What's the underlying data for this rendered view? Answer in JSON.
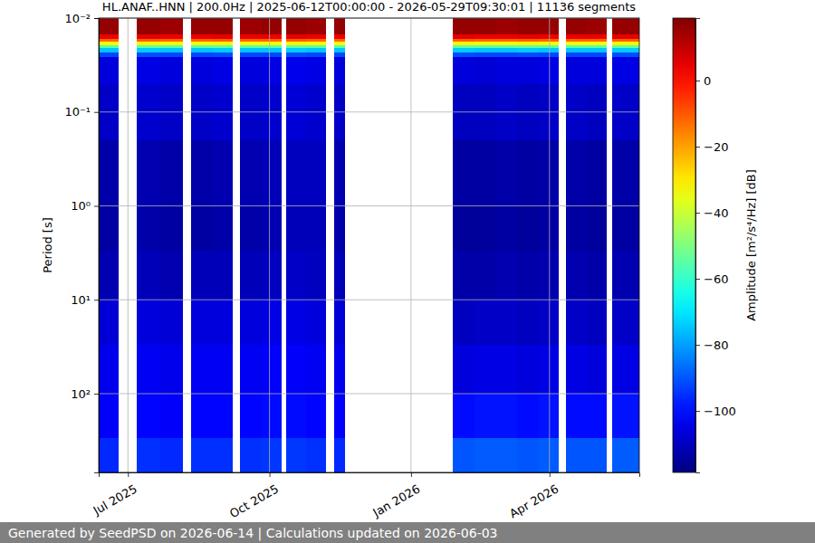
{
  "chart_data": {
    "type": "heatmap",
    "title": "HL.ANAF..HNN | 200.0Hz | 2025-06-12T00:00:00 - 2026-05-29T09:30:01 | 11136 segments",
    "ylabel": "Period [s]",
    "footer": "Generated by SeedPSD on 2026-06-14 | Calculations updated on 2026-06-03",
    "log": "y",
    "grid": true,
    "xlim": [
      "2025-06-12T00:00:00",
      "2026-05-29T09:30:01"
    ],
    "xticks": [
      {
        "value": "2025-07-01",
        "label": "Jul 2025"
      },
      {
        "value": "2025-10-01",
        "label": "Oct 2025"
      },
      {
        "value": "2026-01-01",
        "label": "Jan 2026"
      },
      {
        "value": "2026-04-01",
        "label": "Apr 2026"
      }
    ],
    "ylim": [
      0.01,
      690
    ],
    "yticks": [
      {
        "value": 0.01,
        "label": "10⁻²"
      },
      {
        "value": 0.1,
        "label": "10⁻¹"
      },
      {
        "value": 1,
        "label": "10⁰"
      },
      {
        "value": 10,
        "label": "10¹"
      },
      {
        "value": 100,
        "label": "10²"
      }
    ],
    "x": [
      "2025-06-12",
      "2025-07-07",
      "2025-07-22",
      "2025-08-11",
      "2025-08-25",
      "2025-09-12",
      "2025-09-26",
      "2025-10-12",
      "2025-10-25",
      "2025-11-12",
      "2026-01-28",
      "2026-02-11",
      "2026-02-25",
      "2026-03-11",
      "2026-03-25",
      "2026-04-12",
      "2026-04-25",
      "2026-05-12"
    ],
    "x_end": [
      "2025-06-25",
      "2025-07-22",
      "2025-08-06",
      "2025-08-25",
      "2025-09-07",
      "2025-09-26",
      "2025-10-09",
      "2025-10-25",
      "2025-11-07",
      "2025-11-19",
      "2026-02-11",
      "2026-02-25",
      "2026-03-11",
      "2026-03-25",
      "2026-04-07",
      "2026-04-25",
      "2026-05-08",
      "2026-05-29T09:30:01"
    ],
    "y_edges": [
      0.01,
      0.015,
      0.0165,
      0.018,
      0.0195,
      0.021,
      0.023,
      0.026,
      0.05,
      0.2,
      1,
      3,
      10,
      30,
      100,
      300,
      690
    ],
    "values": [
      [
        16,
        16,
        15,
        16,
        16,
        15,
        16,
        16,
        15,
        16,
        16,
        16,
        15,
        16,
        16,
        16,
        15,
        16
      ],
      [
        4,
        5,
        4,
        4,
        5,
        4,
        4,
        5,
        4,
        4,
        5,
        4,
        4,
        5,
        4,
        4,
        4,
        5
      ],
      [
        -12,
        -11,
        -12,
        -12,
        -11,
        -12,
        -12,
        -11,
        -12,
        -12,
        -11,
        -12,
        -12,
        -11,
        -12,
        -12,
        -12,
        -11
      ],
      [
        -32,
        -31,
        -32,
        -32,
        -31,
        -32,
        -32,
        -31,
        -32,
        -32,
        -31,
        -32,
        -32,
        -31,
        -32,
        -32,
        -32,
        -31
      ],
      [
        -55,
        -54,
        -55,
        -55,
        -54,
        -55,
        -55,
        -54,
        -55,
        -55,
        -54,
        -55,
        -55,
        -54,
        -55,
        -55,
        -55,
        -54
      ],
      [
        -75,
        -74,
        -75,
        -75,
        -74,
        -75,
        -75,
        -74,
        -75,
        -75,
        -74,
        -75,
        -75,
        -74,
        -75,
        -75,
        -75,
        -74
      ],
      [
        -92,
        -91,
        -92,
        -92,
        -91,
        -92,
        -92,
        -91,
        -92,
        -92,
        -91,
        -92,
        -92,
        -91,
        -92,
        -92,
        -92,
        -91
      ],
      [
        -106,
        -105,
        -106,
        -106,
        -105,
        -106,
        -105,
        -104,
        -105,
        -106,
        -106,
        -107,
        -106,
        -106,
        -105,
        -106,
        -106,
        -105
      ],
      [
        -109,
        -108,
        -109,
        -109,
        -108,
        -109,
        -108,
        -107,
        -108,
        -109,
        -110,
        -110,
        -109,
        -110,
        -109,
        -109,
        -110,
        -109
      ],
      [
        -113,
        -112,
        -113,
        -113,
        -112,
        -112,
        -111,
        -110,
        -110,
        -112,
        -114,
        -114,
        -113,
        -114,
        -113,
        -113,
        -114,
        -113
      ],
      [
        -114,
        -113,
        -114,
        -114,
        -113,
        -113,
        -112,
        -111,
        -111,
        -113,
        -115,
        -115,
        -114,
        -115,
        -114,
        -114,
        -115,
        -114
      ],
      [
        -112,
        -111,
        -112,
        -111,
        -111,
        -111,
        -110,
        -109,
        -110,
        -111,
        -113,
        -113,
        -112,
        -113,
        -112,
        -112,
        -113,
        -112
      ],
      [
        -107,
        -106,
        -107,
        -106,
        -106,
        -106,
        -105,
        -105,
        -106,
        -107,
        -110,
        -109,
        -109,
        -110,
        -109,
        -109,
        -110,
        -109
      ],
      [
        -104,
        -103,
        -104,
        -103,
        -103,
        -103,
        -102,
        -102,
        -103,
        -104,
        -106,
        -105,
        -105,
        -106,
        -105,
        -105,
        -106,
        -105
      ],
      [
        -102,
        -101,
        -102,
        -101,
        -101,
        -101,
        -100,
        -100,
        -101,
        -102,
        -100,
        -99,
        -99,
        -100,
        -99,
        -100,
        -100,
        -99
      ],
      [
        -96,
        -95,
        -96,
        -95,
        -95,
        -95,
        -94,
        -94,
        -95,
        -96,
        -90,
        -89,
        -89,
        -90,
        -89,
        -90,
        -90,
        -89
      ]
    ],
    "colorbar": {
      "label": "Amplitude [m²/s⁴/Hz] [dB]",
      "lim": [
        -118.6,
        18.9
      ],
      "ticks": [
        {
          "value": -100,
          "label": "−100"
        },
        {
          "value": -80,
          "label": "−80"
        },
        {
          "value": -60,
          "label": "−60"
        },
        {
          "value": -40,
          "label": "−40"
        },
        {
          "value": -20,
          "label": "−20"
        },
        0
      ]
    }
  }
}
